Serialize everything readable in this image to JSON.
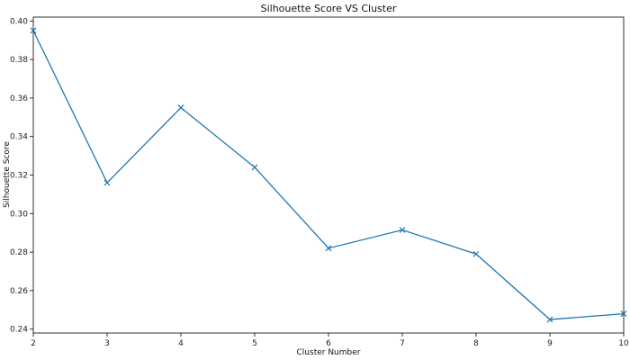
{
  "chart_data": {
    "type": "line",
    "title": "Silhouette Score VS Cluster",
    "xlabel": "Cluster Number",
    "ylabel": "Silhouette Score",
    "xlim": [
      2,
      10
    ],
    "ylim": [
      0.238,
      0.402
    ],
    "grid": false,
    "marker": "x",
    "series_color": "#1f77b4",
    "x_ticks": [
      2,
      3,
      4,
      5,
      6,
      7,
      8,
      9,
      10
    ],
    "y_ticks": [
      "0.24",
      "0.26",
      "0.28",
      "0.30",
      "0.32",
      "0.34",
      "0.36",
      "0.38",
      "0.40"
    ],
    "series": [
      {
        "x": [
          2,
          3,
          4,
          5,
          6,
          7,
          8,
          9,
          10
        ],
        "values": [
          0.395,
          0.316,
          0.355,
          0.324,
          0.282,
          0.2915,
          0.279,
          0.245,
          0.248
        ]
      }
    ]
  }
}
